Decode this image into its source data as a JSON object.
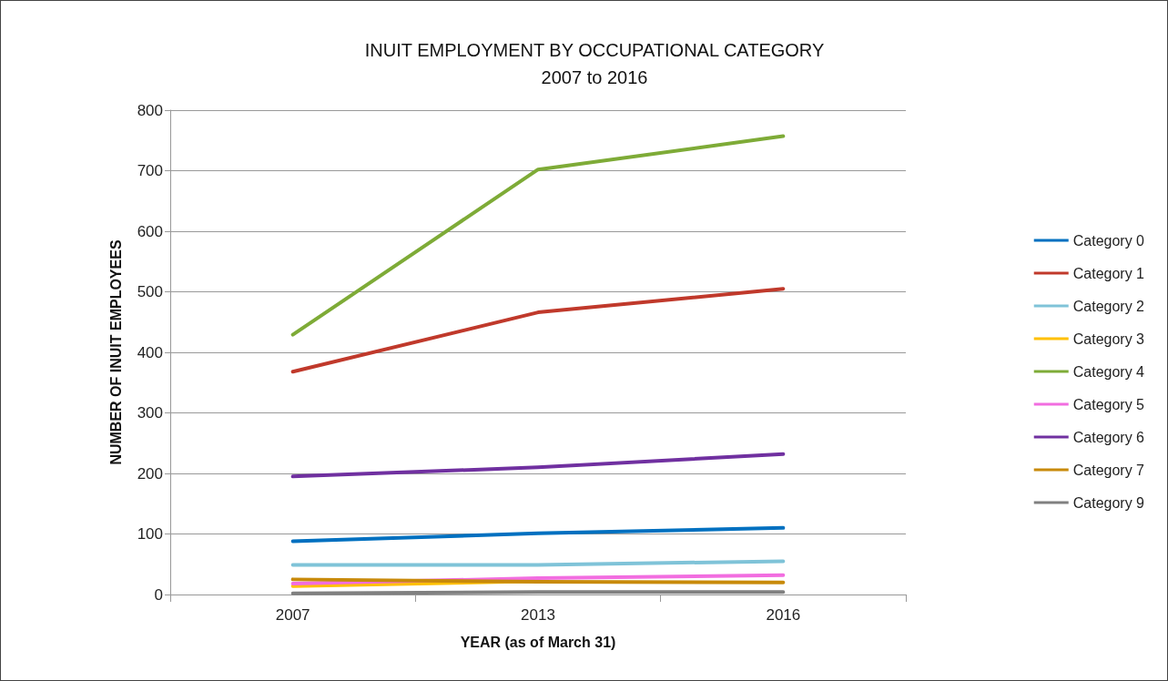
{
  "chart_data": {
    "type": "line",
    "title": "INUIT EMPLOYMENT BY OCCUPATIONAL CATEGORY\n2007 to 2016",
    "xlabel": "YEAR (as of March 31)",
    "ylabel": "NUMBER OF INUIT EMPLOYEES",
    "categories": [
      "2007",
      "2013",
      "2016"
    ],
    "ylim": [
      0,
      800
    ],
    "yticks": [
      0,
      100,
      200,
      300,
      400,
      500,
      600,
      700,
      800
    ],
    "grid": "y",
    "legend": "right",
    "marker": "none",
    "line_style": "solid",
    "series": [
      {
        "name": "Category 0",
        "color": "#0070c0",
        "values": [
          88,
          101,
          110
        ]
      },
      {
        "name": "Category 1",
        "color": "#c0392b",
        "values": [
          368,
          466,
          505
        ]
      },
      {
        "name": "Category 2",
        "color": "#7fc3d8",
        "values": [
          49,
          49,
          55
        ]
      },
      {
        "name": "Category 3",
        "color": "#ffc000",
        "values": [
          14,
          22,
          null
        ]
      },
      {
        "name": "Category 4",
        "color": "#7eab37",
        "values": [
          429,
          702,
          757
        ]
      },
      {
        "name": "Category 5",
        "color": "#f26de0",
        "values": [
          18,
          27,
          32
        ]
      },
      {
        "name": "Category 6",
        "color": "#7030a0",
        "values": [
          195,
          210,
          232
        ]
      },
      {
        "name": "Category 7",
        "color": "#c88a0a",
        "values": [
          25,
          21,
          20
        ]
      },
      {
        "name": "Category 9",
        "color": "#808080",
        "values": [
          2,
          4,
          4
        ]
      }
    ]
  }
}
